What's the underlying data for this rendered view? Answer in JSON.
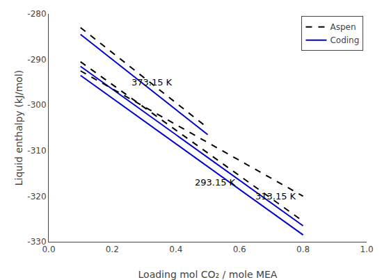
{
  "chart_data": {
    "type": "line",
    "xlabel": "Loading mol CO₂ / mole MEA",
    "ylabel": "Liquid enthalpy (kJ/mol)",
    "xlim": [
      0.0,
      1.0
    ],
    "ylim": [
      -330,
      -280
    ],
    "xticks": [
      {
        "value": 0.0,
        "label": "0.0"
      },
      0.2,
      0.4,
      0.6,
      0.8,
      {
        "value": 1.0,
        "label": "1.0"
      }
    ],
    "yticks": [
      -330,
      -320,
      -310,
      -300,
      -290,
      -280
    ],
    "grid": false,
    "legend": "upper right",
    "series": [
      {
        "name": "Aspen",
        "color": "#000000",
        "line_style": "dashed",
        "x": [
          0.1,
          0.5
        ],
        "values": [
          -283.0,
          -305.0
        ]
      },
      {
        "name": "Coding",
        "color": "#0000CD",
        "line_style": "solid",
        "x": [
          0.1,
          0.5
        ],
        "values": [
          -284.5,
          -306.5
        ]
      },
      {
        "color": "#000000",
        "line_style": "dashed",
        "x": [
          0.1,
          0.8
        ],
        "values": [
          -290.5,
          -325.5
        ]
      },
      {
        "color": "#0000CD",
        "line_style": "solid",
        "x": [
          0.1,
          0.8
        ],
        "values": [
          -291.5,
          -326.5
        ]
      },
      {
        "color": "#000000",
        "line_style": "dashed",
        "x": [
          0.1,
          0.8
        ],
        "values": [
          -292.5,
          -320.0
        ]
      },
      {
        "color": "#0000CD",
        "line_style": "solid",
        "x": [
          0.1,
          0.8
        ],
        "values": [
          -293.5,
          -328.5
        ]
      }
    ],
    "annotations": [
      {
        "text": "373.15 K",
        "x": 0.255,
        "y": -293.5
      },
      {
        "text": "293.15 K",
        "x": 0.455,
        "y": -315.5
      },
      {
        "text": "313.15 K",
        "x": 0.645,
        "y": -318.5
      }
    ]
  }
}
